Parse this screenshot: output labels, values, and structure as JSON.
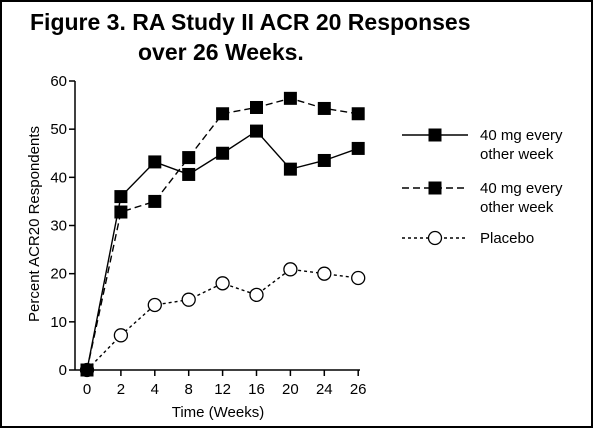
{
  "chart_data": {
    "type": "line",
    "title": [
      "Figure 3. RA Study II ACR 20 Responses",
      "over 26 Weeks."
    ],
    "xlabel": "Time (Weeks)",
    "ylabel": "Percent ACR20 Respondents",
    "categories": [
      "0",
      "2",
      "4",
      "8",
      "12",
      "16",
      "20",
      "24",
      "26"
    ],
    "ylim": [
      0,
      60
    ],
    "yticks": [
      0,
      10,
      20,
      30,
      40,
      50,
      60
    ],
    "grid": false,
    "legend_position": "right",
    "series": [
      {
        "name": "40 mg every other week",
        "legend_lines": [
          "40 mg every",
          "other week"
        ],
        "line_style": "solid",
        "marker": "filled-square",
        "values": [
          0,
          36,
          43.2,
          40.6,
          45,
          49.6,
          41.7,
          43.5,
          46
        ]
      },
      {
        "name": "40 mg every other week",
        "legend_lines": [
          "40 mg every",
          "other week"
        ],
        "line_style": "dashed",
        "marker": "filled-square",
        "values": [
          0,
          32.8,
          35,
          44.1,
          53.2,
          54.5,
          56.4,
          54.3,
          53.2
        ]
      },
      {
        "name": "Placebo",
        "legend_lines": [
          "Placebo"
        ],
        "line_style": "dotted",
        "marker": "open-circle",
        "values": [
          0,
          7.2,
          13.5,
          14.6,
          18,
          15.6,
          20.9,
          20,
          19.1
        ]
      }
    ]
  },
  "colors": {
    "ink": "#000000",
    "background": "#ffffff"
  }
}
